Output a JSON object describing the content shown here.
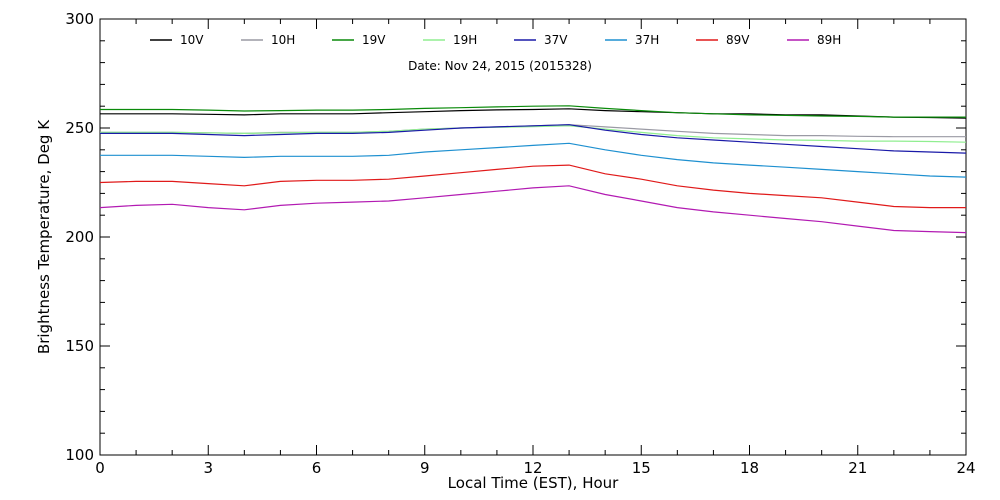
{
  "chart_data": {
    "type": "line",
    "title": "",
    "subtitle": "Date: Nov 24, 2015 (2015328)",
    "xlabel": "Local Time (EST), Hour",
    "ylabel": "Brightness Temperature, Deg K",
    "xlim": [
      0,
      24
    ],
    "ylim": [
      100,
      300
    ],
    "xticks": [
      0,
      3,
      6,
      9,
      12,
      15,
      18,
      21,
      24
    ],
    "yticks": [
      100,
      150,
      200,
      250,
      300
    ],
    "grid": false,
    "legend_position": "top",
    "x": [
      0,
      1,
      2,
      3,
      4,
      5,
      6,
      7,
      8,
      9,
      10,
      11,
      12,
      13,
      14,
      15,
      16,
      17,
      18,
      19,
      20,
      21,
      22,
      23,
      24
    ],
    "series": [
      {
        "name": "10V",
        "color": "#000000",
        "values": [
          256.5,
          256.5,
          256.5,
          256.3,
          256,
          256.5,
          256.5,
          256.5,
          257,
          257.5,
          258,
          258.3,
          258.5,
          258.8,
          258,
          257.5,
          257,
          256.5,
          256.5,
          256,
          256,
          255.5,
          255,
          254.8,
          254.5
        ]
      },
      {
        "name": "10H",
        "color": "#9a9aa4",
        "values": [
          248,
          248,
          248,
          247.8,
          247.5,
          248,
          248,
          248,
          248.5,
          249.5,
          250,
          250.5,
          251,
          251.5,
          250.5,
          249.5,
          248.5,
          247.5,
          247,
          246.5,
          246.5,
          246.2,
          246,
          246,
          246
        ]
      },
      {
        "name": "19V",
        "color": "#0a8a0a",
        "values": [
          258.5,
          258.5,
          258.5,
          258.2,
          257.8,
          258,
          258.2,
          258.2,
          258.5,
          259,
          259.3,
          259.7,
          260,
          260.2,
          259,
          258,
          257,
          256.5,
          256,
          255.8,
          255.5,
          255.3,
          255,
          255,
          255
        ]
      },
      {
        "name": "19H",
        "color": "#90ee90",
        "values": [
          248,
          248,
          248,
          247.8,
          247.5,
          247.8,
          248,
          248,
          248.5,
          249.5,
          250,
          250.3,
          250.6,
          251,
          249.5,
          248,
          246.5,
          245.5,
          245,
          244.5,
          244.3,
          244,
          244,
          243.8,
          243.5
        ]
      },
      {
        "name": "37V",
        "color": "#1a1aa8",
        "values": [
          247.5,
          247.5,
          247.5,
          247,
          246.5,
          247,
          247.5,
          247.5,
          248,
          249,
          250,
          250.5,
          251,
          251.5,
          249,
          247,
          245.5,
          244.5,
          243.5,
          242.5,
          241.5,
          240.5,
          239.5,
          239,
          238.5
        ]
      },
      {
        "name": "37H",
        "color": "#1e90d0",
        "values": [
          237.5,
          237.5,
          237.5,
          237,
          236.5,
          237,
          237,
          237,
          237.5,
          239,
          240,
          241,
          242,
          243,
          240,
          237.5,
          235.5,
          234,
          233,
          232,
          231,
          230,
          229,
          228,
          227.5
        ]
      },
      {
        "name": "89V",
        "color": "#e01a1a",
        "values": [
          225,
          225.5,
          225.5,
          224.5,
          223.5,
          225.5,
          226,
          226,
          226.5,
          228,
          229.5,
          231,
          232.5,
          233,
          229,
          226.5,
          223.5,
          221.5,
          220,
          219,
          218,
          216,
          214,
          213.5,
          213.5
        ]
      },
      {
        "name": "89H",
        "color": "#b21ab2",
        "values": [
          213.5,
          214.5,
          215,
          213.5,
          212.5,
          214.5,
          215.5,
          216,
          216.5,
          218,
          219.5,
          221,
          222.5,
          223.5,
          219.5,
          216.5,
          213.5,
          211.5,
          210,
          208.5,
          207,
          205,
          203,
          202.5,
          202
        ]
      }
    ]
  }
}
